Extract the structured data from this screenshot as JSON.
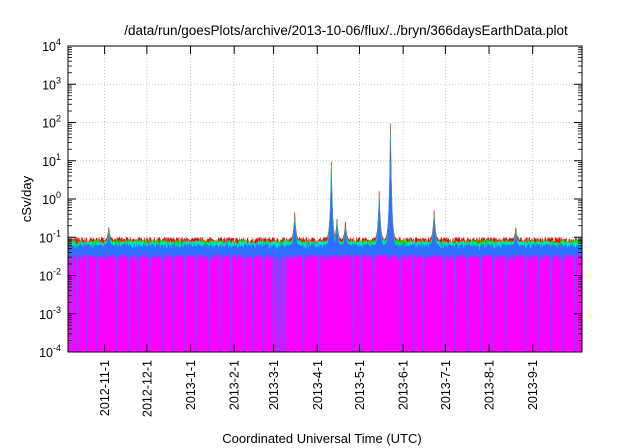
{
  "chart_data": {
    "type": "area",
    "title": "/data/run/goesPlots/archive/2013-10-06/flux/../bryn/366daysEarthData.plot",
    "xlabel": "Coordinated Universal Time (UTC)",
    "ylabel": "cSv/day",
    "yscale": "log",
    "grid": true,
    "legend": "none",
    "xlim": [
      "2012-10-06",
      "2013-10-06"
    ],
    "ylim": [
      0.0001,
      10000
    ],
    "y_ticks": [
      {
        "mantissa": "10",
        "exp": "-4",
        "value": 0.0001
      },
      {
        "mantissa": "10",
        "exp": "-3",
        "value": 0.001
      },
      {
        "mantissa": "10",
        "exp": "-2",
        "value": 0.01
      },
      {
        "mantissa": "10",
        "exp": "-1",
        "value": 0.1
      },
      {
        "mantissa": "10",
        "exp": "0",
        "value": 1
      },
      {
        "mantissa": "10",
        "exp": "1",
        "value": 10
      },
      {
        "mantissa": "10",
        "exp": "2",
        "value": 100
      },
      {
        "mantissa": "10",
        "exp": "3",
        "value": 1000
      },
      {
        "mantissa": "10",
        "exp": "4",
        "value": 10000
      }
    ],
    "x_ticks": [
      "2012-11-1",
      "2012-12-1",
      "2013-1-1",
      "2013-2-1",
      "2013-3-1",
      "2013-4-1",
      "2013-5-1",
      "2013-6-1",
      "2013-7-1",
      "2013-8-1",
      "2013-9-1"
    ],
    "series": [
      {
        "color": "#ff0000",
        "baseline": 0.08,
        "peaks": [
          {
            "x": "2012-11-04",
            "y": 0.18
          },
          {
            "x": "2013-03-16",
            "y": 0.45
          },
          {
            "x": "2013-04-11",
            "y": 9.5
          },
          {
            "x": "2013-04-15",
            "y": 0.3
          },
          {
            "x": "2013-04-21",
            "y": 0.25
          },
          {
            "x": "2013-05-15",
            "y": 1.6
          },
          {
            "x": "2013-05-23",
            "y": 95
          },
          {
            "x": "2013-06-23",
            "y": 0.5
          },
          {
            "x": "2013-08-20",
            "y": 0.18
          }
        ]
      },
      {
        "color": "#00e000",
        "baseline": 0.07,
        "peaks": [
          {
            "x": "2012-11-04",
            "y": 0.15
          },
          {
            "x": "2013-03-16",
            "y": 0.35
          },
          {
            "x": "2013-04-11",
            "y": 7
          },
          {
            "x": "2013-04-15",
            "y": 0.25
          },
          {
            "x": "2013-04-21",
            "y": 0.2
          },
          {
            "x": "2013-05-15",
            "y": 1.2
          },
          {
            "x": "2013-05-23",
            "y": 60
          },
          {
            "x": "2013-06-23",
            "y": 0.4
          },
          {
            "x": "2013-08-20",
            "y": 0.15
          }
        ]
      },
      {
        "color": "#00e0e0",
        "baseline": 0.065,
        "peaks": [
          {
            "x": "2012-11-04",
            "y": 0.14
          },
          {
            "x": "2013-03-16",
            "y": 0.3
          },
          {
            "x": "2013-04-11",
            "y": 5
          },
          {
            "x": "2013-04-15",
            "y": 0.22
          },
          {
            "x": "2013-04-21",
            "y": 0.18
          },
          {
            "x": "2013-05-15",
            "y": 1
          },
          {
            "x": "2013-05-23",
            "y": 45
          },
          {
            "x": "2013-06-23",
            "y": 0.35
          },
          {
            "x": "2013-08-20",
            "y": 0.14
          }
        ]
      },
      {
        "color": "#3070ff",
        "baseline": 0.055,
        "peaks": [
          {
            "x": "2012-11-04",
            "y": 0.12
          },
          {
            "x": "2013-03-16",
            "y": 0.25
          },
          {
            "x": "2013-04-11",
            "y": 3
          },
          {
            "x": "2013-04-15",
            "y": 0.18
          },
          {
            "x": "2013-04-21",
            "y": 0.15
          },
          {
            "x": "2013-05-15",
            "y": 0.8
          },
          {
            "x": "2013-05-23",
            "y": 35
          },
          {
            "x": "2013-06-23",
            "y": 0.3
          },
          {
            "x": "2013-08-20",
            "y": 0.12
          }
        ]
      },
      {
        "color": "#ff00ff",
        "baseline": 0.03,
        "dips": [
          "2012-10-09",
          "2012-10-13",
          "2012-10-20",
          "2012-10-27",
          "2012-11-10",
          "2012-11-18",
          "2012-11-25",
          "2012-12-03",
          "2012-12-12",
          "2012-12-20",
          "2012-12-28",
          "2013-01-05",
          "2013-01-14",
          "2013-01-22",
          "2013-01-30",
          "2013-02-08",
          "2013-02-14",
          "2013-02-22",
          "2013-03-01",
          "2013-03-03",
          "2013-03-05",
          "2013-03-07",
          "2013-03-09",
          "2013-03-22",
          "2013-04-02",
          "2013-04-26",
          "2013-05-02",
          "2013-05-11",
          "2013-05-30",
          "2013-06-08",
          "2013-06-15",
          "2013-06-30",
          "2013-07-08",
          "2013-07-17",
          "2013-07-26",
          "2013-08-04",
          "2013-08-13",
          "2013-08-27",
          "2013-09-05",
          "2013-09-14",
          "2013-09-22",
          "2013-10-01"
        ]
      }
    ]
  }
}
